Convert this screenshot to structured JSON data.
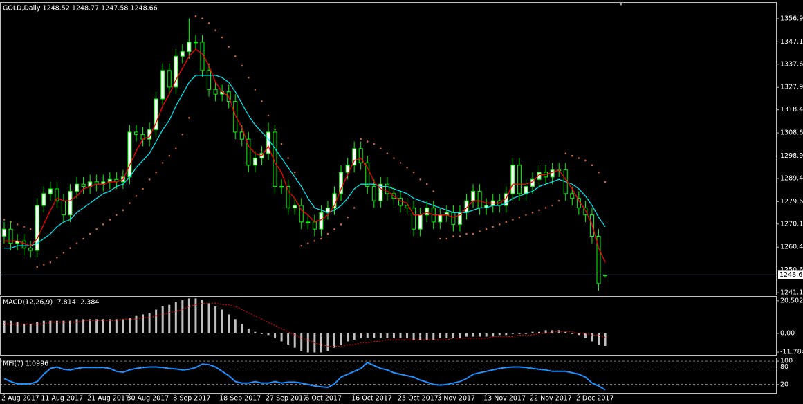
{
  "chart_data": [
    {
      "type": "candlestick",
      "title": "GOLD,Daily  1248.52 1248.77 1247.58 1248.66",
      "categories": [
        "2 Aug 2017",
        null,
        null,
        null,
        null,
        null,
        "11 Aug 2017",
        null,
        null,
        null,
        null,
        null,
        null,
        "21 Aug 2017",
        null,
        null,
        null,
        null,
        null,
        "30 Aug 2017",
        null,
        null,
        null,
        null,
        null,
        null,
        "8 Sep 2017",
        null,
        null,
        null,
        null,
        null,
        null,
        "18 Sep 2017",
        null,
        null,
        null,
        null,
        null,
        null,
        "27 Sep 2017",
        null,
        null,
        null,
        null,
        null,
        "6 Oct 2017",
        null,
        null,
        null,
        null,
        null,
        null,
        "16 Oct 2017",
        null,
        null,
        null,
        null,
        null,
        null,
        "25 Oct 2017",
        null,
        null,
        null,
        null,
        null,
        "3 Nov 2017",
        null,
        null,
        null,
        null,
        null,
        null,
        "13 Nov 2017",
        null,
        null,
        null,
        null,
        null,
        null,
        "22 Nov 2017",
        null,
        null,
        null,
        null,
        null,
        null,
        "2 Dec 2017",
        null,
        null,
        null,
        null
      ],
      "open": [
        1265,
        1268,
        1262,
        1263,
        1260,
        1259,
        1278,
        1283,
        1285,
        1280,
        1274,
        1284,
        1287,
        1286,
        1288,
        1287,
        1288,
        1289,
        1288,
        1290,
        1309,
        1308,
        1306,
        1310,
        1323,
        1335,
        1328,
        1341,
        1343,
        1347,
        1347,
        1335,
        1327,
        1325,
        1326,
        1322,
        1309,
        1306,
        1295,
        1298,
        1300,
        1309,
        1286,
        1286,
        1277,
        1278,
        1271,
        1271,
        1268,
        1275,
        1277,
        1283,
        1292,
        1295,
        1302,
        1296,
        1286,
        1280,
        1287,
        1283,
        1281,
        1278,
        1277,
        1268,
        1274,
        1277,
        1271,
        1274,
        1275,
        1270,
        1275,
        1280,
        1284,
        1277,
        1278,
        1280,
        1278,
        1283,
        1295,
        1283,
        1286,
        1289,
        1292,
        1290,
        1293,
        1293,
        1283,
        1281,
        1277,
        1274,
        1265,
        1248.52
      ],
      "high": [
        1271,
        1271,
        1266,
        1266,
        1263,
        1281,
        1286,
        1288,
        1288,
        1283,
        1287,
        1290,
        1290,
        1291,
        1291,
        1291,
        1292,
        1292,
        1293,
        1312,
        1312,
        1311,
        1313,
        1326,
        1338,
        1338,
        1344,
        1346,
        1357,
        1350,
        1350,
        1338,
        1330,
        1329,
        1329,
        1325,
        1312,
        1309,
        1301,
        1303,
        1313,
        1312,
        1289,
        1289,
        1281,
        1281,
        1274,
        1274,
        1278,
        1280,
        1286,
        1295,
        1298,
        1305,
        1305,
        1299,
        1289,
        1290,
        1290,
        1286,
        1284,
        1281,
        1280,
        1277,
        1280,
        1280,
        1277,
        1278,
        1278,
        1278,
        1283,
        1287,
        1287,
        1281,
        1283,
        1283,
        1286,
        1298,
        1298,
        1289,
        1292,
        1295,
        1295,
        1296,
        1296,
        1296,
        1286,
        1284,
        1280,
        1277,
        1268,
        1248.77
      ],
      "low": [
        1262,
        1259,
        1259,
        1257,
        1256,
        1256,
        1275,
        1280,
        1277,
        1271,
        1271,
        1281,
        1283,
        1283,
        1284,
        1284,
        1285,
        1285,
        1285,
        1287,
        1305,
        1303,
        1303,
        1307,
        1320,
        1325,
        1325,
        1338,
        1340,
        1344,
        1332,
        1324,
        1322,
        1322,
        1319,
        1306,
        1303,
        1292,
        1292,
        1295,
        1297,
        1283,
        1283,
        1274,
        1274,
        1268,
        1268,
        1265,
        1265,
        1272,
        1274,
        1280,
        1289,
        1292,
        1293,
        1283,
        1277,
        1277,
        1280,
        1278,
        1275,
        1274,
        1265,
        1265,
        1271,
        1268,
        1268,
        1271,
        1267,
        1267,
        1272,
        1277,
        1274,
        1274,
        1275,
        1275,
        1275,
        1280,
        1280,
        1280,
        1283,
        1286,
        1287,
        1287,
        1290,
        1280,
        1278,
        1274,
        1271,
        1262,
        1242,
        1247.58
      ],
      "close": [
        1268,
        1262,
        1263,
        1260,
        1259,
        1278,
        1283,
        1285,
        1280,
        1274,
        1284,
        1287,
        1286,
        1288,
        1287,
        1288,
        1289,
        1288,
        1290,
        1309,
        1308,
        1306,
        1310,
        1323,
        1335,
        1328,
        1341,
        1343,
        1347,
        1347,
        1335,
        1327,
        1325,
        1326,
        1322,
        1309,
        1306,
        1295,
        1298,
        1300,
        1309,
        1286,
        1286,
        1277,
        1278,
        1271,
        1271,
        1268,
        1275,
        1277,
        1283,
        1292,
        1295,
        1302,
        1296,
        1286,
        1280,
        1287,
        1283,
        1281,
        1278,
        1277,
        1268,
        1274,
        1277,
        1271,
        1274,
        1275,
        1270,
        1275,
        1280,
        1284,
        1277,
        1278,
        1280,
        1278,
        1283,
        1295,
        1283,
        1286,
        1289,
        1292,
        1290,
        1293,
        1293,
        1283,
        1281,
        1277,
        1274,
        1265,
        1245,
        1248.66
      ],
      "up_color": "#ffffff",
      "down_color": "#000000",
      "wick_color": "#00ff00",
      "series": [
        {
          "color": "#00e5ee",
          "style": "line",
          "values": [
            1260,
            1260,
            1261,
            1261,
            1261,
            1262,
            1264,
            1266,
            1269,
            1271,
            1272,
            1275,
            1277,
            1279,
            1281,
            1283,
            1284,
            1286,
            1287,
            1290,
            1294,
            1297,
            1300,
            1305,
            1310,
            1314,
            1320,
            1325,
            1330,
            1333,
            1333,
            1333,
            1333,
            1332,
            1330,
            1326,
            1321,
            1316,
            1312,
            1309,
            1306,
            1302,
            1298,
            1294,
            1290,
            1286,
            1281,
            1277,
            1276,
            1275,
            1276,
            1278,
            1281,
            1285,
            1287,
            1287,
            1287,
            1286,
            1286,
            1285,
            1284,
            1283,
            1281,
            1280,
            1279,
            1278,
            1277,
            1276,
            1275,
            1275,
            1275,
            1276,
            1277,
            1277,
            1278,
            1278,
            1279,
            1281,
            1282,
            1283,
            1284,
            1286,
            1287,
            1288,
            1289,
            1288,
            1287,
            1285,
            1282,
            1278,
            1273,
            1269
          ]
        },
        {
          "color": "#ff0000",
          "style": "line",
          "values": [
            1263,
            1263,
            1263,
            1262,
            1261,
            1264,
            1270,
            1276,
            1281,
            1280,
            1280,
            1282,
            1285,
            1286,
            1287,
            1287,
            1288,
            1288,
            1289,
            1295,
            1301,
            1306,
            1307,
            1313,
            1320,
            1325,
            1331,
            1336,
            1341,
            1344,
            1342,
            1337,
            1330,
            1326,
            1324,
            1316,
            1311,
            1303,
            1300,
            1299,
            1303,
            1296,
            1292,
            1284,
            1281,
            1276,
            1274,
            1271,
            1272,
            1274,
            1278,
            1285,
            1291,
            1297,
            1298,
            1294,
            1288,
            1285,
            1284,
            1282,
            1280,
            1279,
            1274,
            1274,
            1275,
            1274,
            1274,
            1274,
            1273,
            1274,
            1277,
            1280,
            1280,
            1279,
            1279,
            1279,
            1281,
            1287,
            1287,
            1287,
            1288,
            1291,
            1291,
            1292,
            1293,
            1289,
            1285,
            1280,
            1276,
            1270,
            1260,
            1254
          ]
        },
        {
          "color": "#c8643c",
          "style": "dots",
          "values": [
            1272,
            1271,
            1270,
            1269,
            1268,
            1252,
            1253,
            1254,
            1256,
            1258,
            1260,
            1262,
            1264,
            1266,
            1268,
            1270,
            1272,
            1274,
            1276,
            1279,
            1282,
            1285,
            1289,
            1292,
            1296,
            1299,
            1302,
            1308,
            1315,
            1358,
            1357,
            1355,
            1352,
            1349,
            1345,
            1341,
            1337,
            1332,
            1327,
            1322,
            1316,
            1310,
            1304,
            1298,
            1292,
            1261,
            1262,
            1263,
            1264,
            1266,
            1268,
            1270,
            1273,
            1277,
            1306,
            1305,
            1304,
            1302,
            1300,
            1298,
            1296,
            1294,
            1292,
            1289,
            1287,
            1284,
            1264,
            1264,
            1265,
            1265,
            1266,
            1266,
            1267,
            1268,
            1269,
            1270,
            1271,
            1272,
            1273,
            1274,
            1275,
            1276,
            1277,
            1278,
            1280,
            1300,
            1299,
            1298,
            1297,
            1295,
            1292,
            1288
          ]
        }
      ],
      "current_price": 1248.66,
      "ylim": [
        1240.3,
        1363.9
      ],
      "yticks": [
        {
          "value": 1356.9,
          "label": "1356.90"
        },
        1347.15,
        1337.65,
        {
          "value": 1327.9,
          "label": "1327.90"
        },
        {
          "value": 1318.4,
          "label": "1318.40"
        },
        1308.65,
        {
          "value": 1298.9,
          "label": "1298.90"
        },
        {
          "value": 1289.4,
          "label": "1289.40"
        },
        1279.65,
        1270.15,
        {
          "value": 1260.4,
          "label": "1260.40"
        },
        1250.65,
        1241.15
      ]
    },
    {
      "type": "macd",
      "title": "MACD(12,26,9) -7.814 -2.384",
      "values": [
        8,
        8,
        7,
        6,
        6,
        7,
        8,
        8,
        8,
        8,
        8,
        9,
        9,
        9,
        9,
        9,
        9,
        9,
        9,
        10,
        11,
        12,
        13,
        15,
        17,
        18,
        20,
        21,
        22,
        22,
        21,
        19,
        17,
        15,
        12,
        9,
        6,
        3,
        1,
        0,
        -1,
        -3,
        -5,
        -7,
        -9,
        -11,
        -12,
        -12,
        -12,
        -11,
        -9,
        -7,
        -5,
        -4,
        -3,
        -3,
        -3,
        -3,
        -3,
        -3,
        -3,
        -3,
        -4,
        -4,
        -4,
        -4,
        -3,
        -3,
        -3,
        -3,
        -2,
        -2,
        -2,
        -2,
        -2,
        -1,
        -1,
        0,
        0,
        0,
        1,
        1,
        2,
        2,
        2,
        1,
        0,
        -1,
        -3,
        -5,
        -7,
        -7.814
      ],
      "signal": [
        6,
        6,
        6,
        6,
        6,
        6,
        6,
        7,
        7,
        7,
        7,
        7,
        8,
        8,
        8,
        8,
        8,
        8,
        9,
        9,
        9,
        10,
        10,
        11,
        12,
        13,
        14,
        15,
        17,
        18,
        19,
        19,
        19,
        18,
        18,
        17,
        15,
        13,
        11,
        9,
        7,
        5,
        3,
        1,
        -1,
        -3,
        -4,
        -6,
        -7,
        -8,
        -8,
        -8,
        -7,
        -7,
        -6,
        -6,
        -5,
        -5,
        -4,
        -4,
        -4,
        -4,
        -4,
        -4,
        -4,
        -4,
        -4,
        -4,
        -3,
        -3,
        -3,
        -3,
        -3,
        -3,
        -2,
        -2,
        -2,
        -2,
        -1,
        -1,
        -1,
        0,
        0,
        1,
        1,
        1,
        1,
        0,
        0,
        -1,
        -1,
        -2.384
      ],
      "color": "#c0c0c0",
      "signal_color": "#ff0000",
      "ylim": [
        -13.5,
        23.5
      ],
      "yticks": [
        20.502,
        {
          "value": 0,
          "label": "0.00"
        },
        -11.784
      ]
    },
    {
      "type": "line",
      "title": "MFI(7) 1.0996",
      "values": [
        40,
        30,
        22,
        22,
        22,
        30,
        55,
        75,
        80,
        72,
        70,
        75,
        78,
        78,
        78,
        78,
        75,
        65,
        62,
        70,
        75,
        78,
        80,
        80,
        78,
        75,
        73,
        70,
        72,
        78,
        90,
        88,
        80,
        65,
        50,
        30,
        25,
        25,
        30,
        25,
        25,
        30,
        25,
        28,
        28,
        25,
        20,
        15,
        12,
        10,
        22,
        45,
        55,
        65,
        75,
        95,
        85,
        75,
        70,
        60,
        55,
        50,
        45,
        35,
        28,
        20,
        18,
        20,
        25,
        30,
        40,
        55,
        60,
        65,
        70,
        75,
        78,
        80,
        80,
        78,
        75,
        72,
        70,
        65,
        65,
        65,
        60,
        55,
        45,
        25,
        15,
        1.0996
      ],
      "color": "#1e90ff",
      "ylim": [
        -9,
        112
      ],
      "yticks": [
        100,
        80,
        20
      ]
    }
  ]
}
